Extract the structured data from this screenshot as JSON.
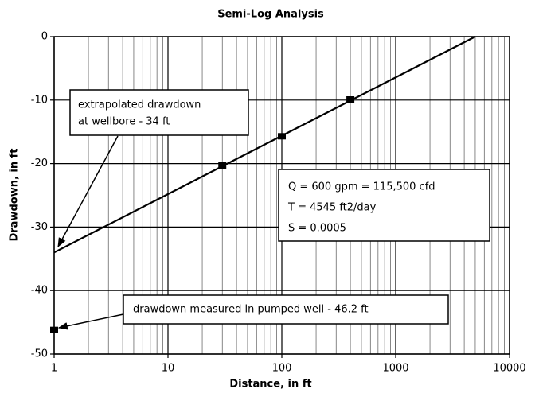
{
  "chart_data": {
    "type": "scatter",
    "title": "Semi-Log Analysis",
    "xlabel": "Distance, in ft",
    "ylabel": "Drawdown, in ft",
    "xscale": "log",
    "xlim": [
      1,
      10000
    ],
    "ylim": [
      -50,
      0
    ],
    "xticks": [
      1,
      10,
      100,
      1000,
      10000
    ],
    "xminorticks": [
      2,
      3,
      4,
      5,
      6,
      7,
      8,
      9,
      20,
      30,
      40,
      50,
      60,
      70,
      80,
      90,
      200,
      300,
      400,
      500,
      600,
      700,
      800,
      900,
      2000,
      3000,
      4000,
      5000,
      6000,
      7000,
      8000,
      9000
    ],
    "yticks": [
      -50,
      -40,
      -30,
      -20,
      -10,
      0
    ],
    "grid": true,
    "series": [
      {
        "style": "line",
        "color": "#000000",
        "x": [
          1,
          5000
        ],
        "values": [
          -34,
          0
        ]
      },
      {
        "style": "markers",
        "color": "#000000",
        "x": [
          1,
          30,
          100,
          400
        ],
        "values": [
          -46.2,
          -20.3,
          -15.7,
          -9.9
        ]
      }
    ],
    "annotations": [
      {
        "lines": [
          "extrapolated drawdown",
          "at wellbore - 34 ft"
        ]
      },
      {
        "lines": [
          "Q = 600 gpm = 115,500 cfd",
          "T = 4545 ft2/day",
          "S = 0.0005"
        ]
      },
      {
        "lines": [
          "drawdown measured in pumped well - 46.2 ft"
        ]
      }
    ]
  }
}
